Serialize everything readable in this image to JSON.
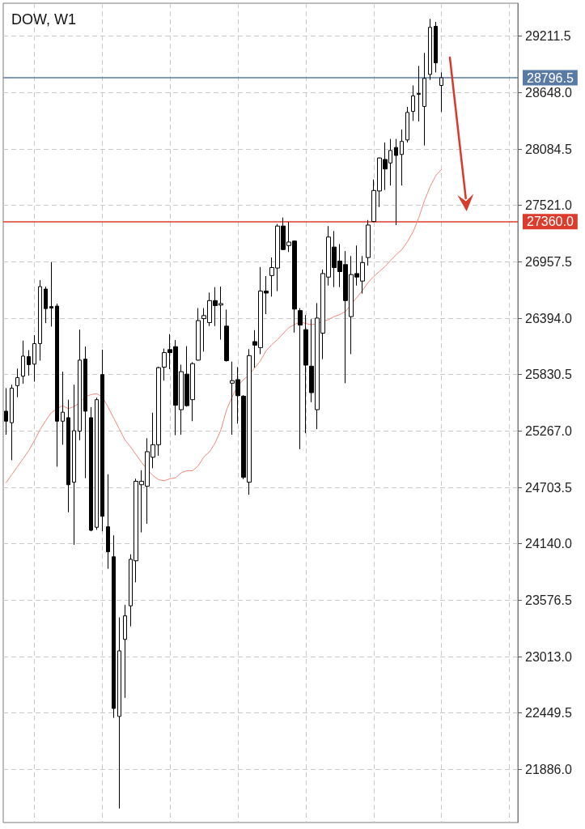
{
  "chart_data": {
    "type": "candlestick",
    "title": "DOW, W1",
    "categories": [
      null,
      null,
      null,
      null,
      null,
      null,
      null,
      null,
      null,
      null,
      null,
      null,
      null,
      null,
      null,
      null,
      null,
      null,
      null,
      null,
      null,
      null,
      null,
      null,
      null,
      null,
      null,
      null,
      null,
      null,
      null,
      null,
      null,
      null,
      null,
      null,
      null,
      null,
      null,
      null,
      null,
      null,
      null,
      null,
      null,
      null,
      null,
      null,
      null,
      null,
      null,
      null,
      null,
      null,
      null,
      null,
      null,
      null,
      null,
      null,
      null,
      null,
      null,
      null,
      null,
      null,
      null,
      null,
      null,
      null,
      null,
      null,
      null,
      null,
      null,
      null,
      null,
      null
    ],
    "color": "#000000",
    "ohlc": [
      [
        25465,
        25695,
        25230,
        25365
      ],
      [
        25350,
        25730,
        24975,
        25695
      ],
      [
        25720,
        25890,
        25605,
        25800
      ],
      [
        25815,
        26170,
        25740,
        26015
      ],
      [
        26010,
        26075,
        25820,
        25930
      ],
      [
        25935,
        26225,
        25760,
        26140
      ],
      [
        26140,
        26775,
        25970,
        26710
      ],
      [
        26685,
        26710,
        26345,
        26490
      ],
      [
        26510,
        26955,
        26310,
        26495
      ],
      [
        26515,
        26540,
        24910,
        25365
      ],
      [
        25365,
        25860,
        25130,
        25455
      ],
      [
        25400,
        25580,
        24455,
        24730
      ],
      [
        24755,
        25730,
        24130,
        25270
      ],
      [
        25265,
        26280,
        25175,
        25975
      ],
      [
        25985,
        26110,
        24795,
        25465
      ],
      [
        25400,
        25505,
        24265,
        24275
      ],
      [
        24305,
        25600,
        24280,
        25580
      ],
      [
        25830,
        26080,
        24265,
        24415
      ],
      [
        24310,
        24835,
        23890,
        24060
      ],
      [
        24010,
        24225,
        22400,
        22495
      ],
      [
        22415,
        23405,
        21495,
        23070
      ],
      [
        23185,
        23530,
        22600,
        23420
      ],
      [
        23520,
        24035,
        23315,
        23985
      ],
      [
        23970,
        24790,
        23755,
        24765
      ],
      [
        24730,
        24875,
        24255,
        24765
      ],
      [
        24715,
        25195,
        24340,
        25060
      ],
      [
        25005,
        25450,
        24895,
        25130
      ],
      [
        25130,
        25910,
        25020,
        25900
      ],
      [
        25905,
        26090,
        25770,
        26050
      ],
      [
        26080,
        26235,
        25885,
        26050
      ],
      [
        26110,
        26175,
        25225,
        25525
      ],
      [
        25480,
        25930,
        25230,
        25860
      ],
      [
        25835,
        26115,
        25510,
        25520
      ],
      [
        25580,
        25955,
        25365,
        25940
      ],
      [
        25975,
        26495,
        25970,
        26370
      ],
      [
        26390,
        26495,
        26060,
        26420
      ],
      [
        26350,
        26650,
        26315,
        26570
      ],
      [
        26570,
        26705,
        26315,
        26520
      ],
      [
        26525,
        26710,
        26180,
        26540
      ],
      [
        26315,
        26480,
        25960,
        25970
      ],
      [
        25745,
        25960,
        25230,
        25770
      ],
      [
        25780,
        25905,
        25340,
        25620
      ],
      [
        25615,
        25625,
        24785,
        24805
      ],
      [
        24755,
        26085,
        24630,
        26020
      ],
      [
        26160,
        26275,
        25900,
        26125
      ],
      [
        26100,
        26905,
        26035,
        26665
      ],
      [
        26665,
        26815,
        26435,
        26645
      ],
      [
        26820,
        27000,
        26610,
        26900
      ],
      [
        26895,
        27335,
        26665,
        27315
      ],
      [
        27315,
        27400,
        27075,
        27080
      ],
      [
        27120,
        27355,
        27055,
        27155
      ],
      [
        27165,
        27170,
        26250,
        26485
      ],
      [
        26470,
        26495,
        25085,
        26325
      ],
      [
        26280,
        26425,
        25245,
        25925
      ],
      [
        25915,
        26385,
        25555,
        25650
      ],
      [
        25480,
        26545,
        25285,
        26395
      ],
      [
        26245,
        26880,
        25985,
        26840
      ],
      [
        26805,
        27315,
        26720,
        27205
      ],
      [
        27105,
        27265,
        26705,
        26900
      ],
      [
        26965,
        27135,
        26705,
        26860
      ],
      [
        26930,
        27065,
        25745,
        26570
      ],
      [
        26410,
        27015,
        26035,
        26830
      ],
      [
        26840,
        27120,
        26720,
        26805
      ],
      [
        26765,
        27015,
        26640,
        26950
      ],
      [
        27000,
        27375,
        26920,
        27325
      ],
      [
        27360,
        27780,
        27355,
        27670
      ],
      [
        27665,
        28000,
        27505,
        27995
      ],
      [
        27980,
        28150,
        27675,
        27885
      ],
      [
        27945,
        28185,
        27720,
        28070
      ],
      [
        28100,
        28185,
        27325,
        28020
      ],
      [
        28030,
        28280,
        27720,
        28160
      ],
      [
        28175,
        28505,
        28150,
        28450
      ],
      [
        28460,
        28720,
        28365,
        28615
      ],
      [
        28630,
        28915,
        28360,
        28640
      ],
      [
        28510,
        29045,
        28120,
        28790
      ],
      [
        28830,
        29385,
        28775,
        29300
      ],
      [
        29310,
        29355,
        28850,
        28945
      ],
      [
        28720,
        28850,
        28455,
        28796.5
      ]
    ],
    "series": [
      {
        "type": "line",
        "color": "#f2887a",
        "values": [
          24750,
          24830,
          24910,
          24990,
          25070,
          25170,
          25280,
          25370,
          25450,
          25490,
          25520,
          25490,
          25510,
          25550,
          25610,
          25630,
          25640,
          25610,
          25510,
          25400,
          25290,
          25180,
          25110,
          25030,
          24950,
          24880,
          24820,
          24780,
          24770,
          24790,
          24800,
          24850,
          24870,
          24870,
          24920,
          25010,
          25060,
          25150,
          25280,
          25480,
          25610,
          25720,
          25780,
          25830,
          25900,
          25970,
          26070,
          26130,
          26180,
          26240,
          26300,
          26330,
          26360,
          26340,
          26330,
          26340,
          26360,
          26380,
          26410,
          26430,
          26460,
          26530,
          26600,
          26670,
          26750,
          26810,
          26860,
          26910,
          26970,
          27030,
          27080,
          27160,
          27260,
          27400,
          27570,
          27710,
          27820,
          27880
        ]
      }
    ],
    "ylim": [
      21355,
      29541
    ],
    "yticks": [
      {
        "value": 21886,
        "label": "21886.0"
      },
      22449.5,
      {
        "value": 23013,
        "label": "23013.0"
      },
      23576.5,
      {
        "value": 24140,
        "label": "24140.0"
      },
      24703.5,
      {
        "value": 25267,
        "label": "25267.0"
      },
      25830.5,
      {
        "value": 26394,
        "label": "26394.0"
      },
      26957.5,
      {
        "value": 27521,
        "label": "27521.0"
      },
      28084.5,
      {
        "value": 28648,
        "label": "28648.0"
      },
      29211.5
    ],
    "ref_lines": [
      {
        "axis": "y",
        "value": 28796.5,
        "label": "28796.5",
        "color": "#5a7aa6",
        "line_style": "solid"
      },
      {
        "axis": "y",
        "value": 27360,
        "label": "27360.0",
        "color": "#dc3c2b",
        "line_style": "solid"
      }
    ],
    "grid": true,
    "marker": "none",
    "line_style": "solid"
  }
}
